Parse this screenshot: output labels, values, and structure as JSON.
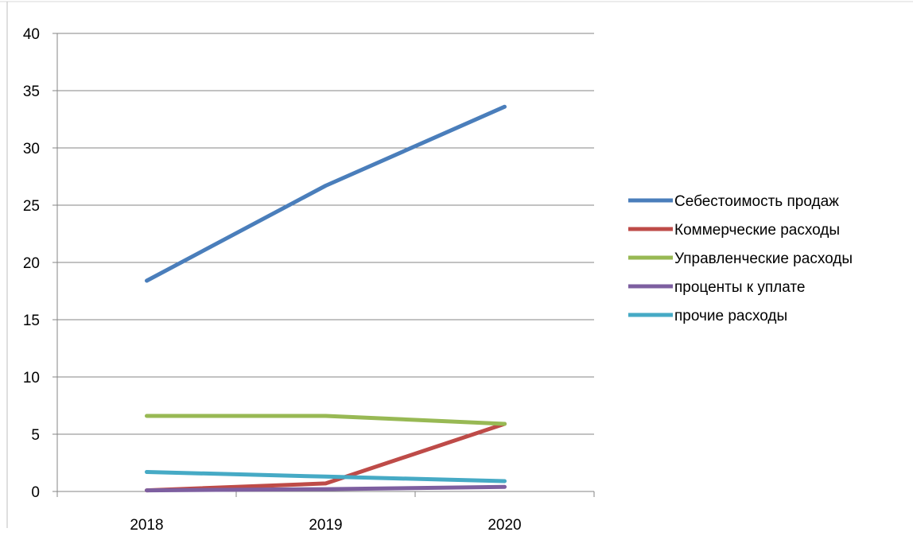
{
  "chart_data": {
    "type": "line",
    "title": "",
    "xlabel": "",
    "ylabel": "",
    "categories": [
      "2018",
      "2019",
      "2020"
    ],
    "ylim": [
      0,
      40
    ],
    "yticks": [
      0,
      5,
      10,
      15,
      20,
      25,
      30,
      35,
      40
    ],
    "grid": true,
    "legend_position": "right",
    "series": [
      {
        "name": "Себестоимость продаж",
        "color": "#4a7ebb",
        "values": [
          18.4,
          26.7,
          33.6
        ]
      },
      {
        "name": "Коммерческие расходы",
        "color": "#be4b48",
        "values": [
          0.1,
          0.7,
          5.9
        ]
      },
      {
        "name": "Управленческие расходы",
        "color": "#98b954",
        "values": [
          6.6,
          6.6,
          5.9
        ]
      },
      {
        "name": "проценты к уплате",
        "color": "#7d5fa0",
        "values": [
          0.1,
          0.2,
          0.4
        ]
      },
      {
        "name": "прочие расходы",
        "color": "#46aac5",
        "values": [
          1.7,
          1.3,
          0.9
        ]
      }
    ]
  }
}
